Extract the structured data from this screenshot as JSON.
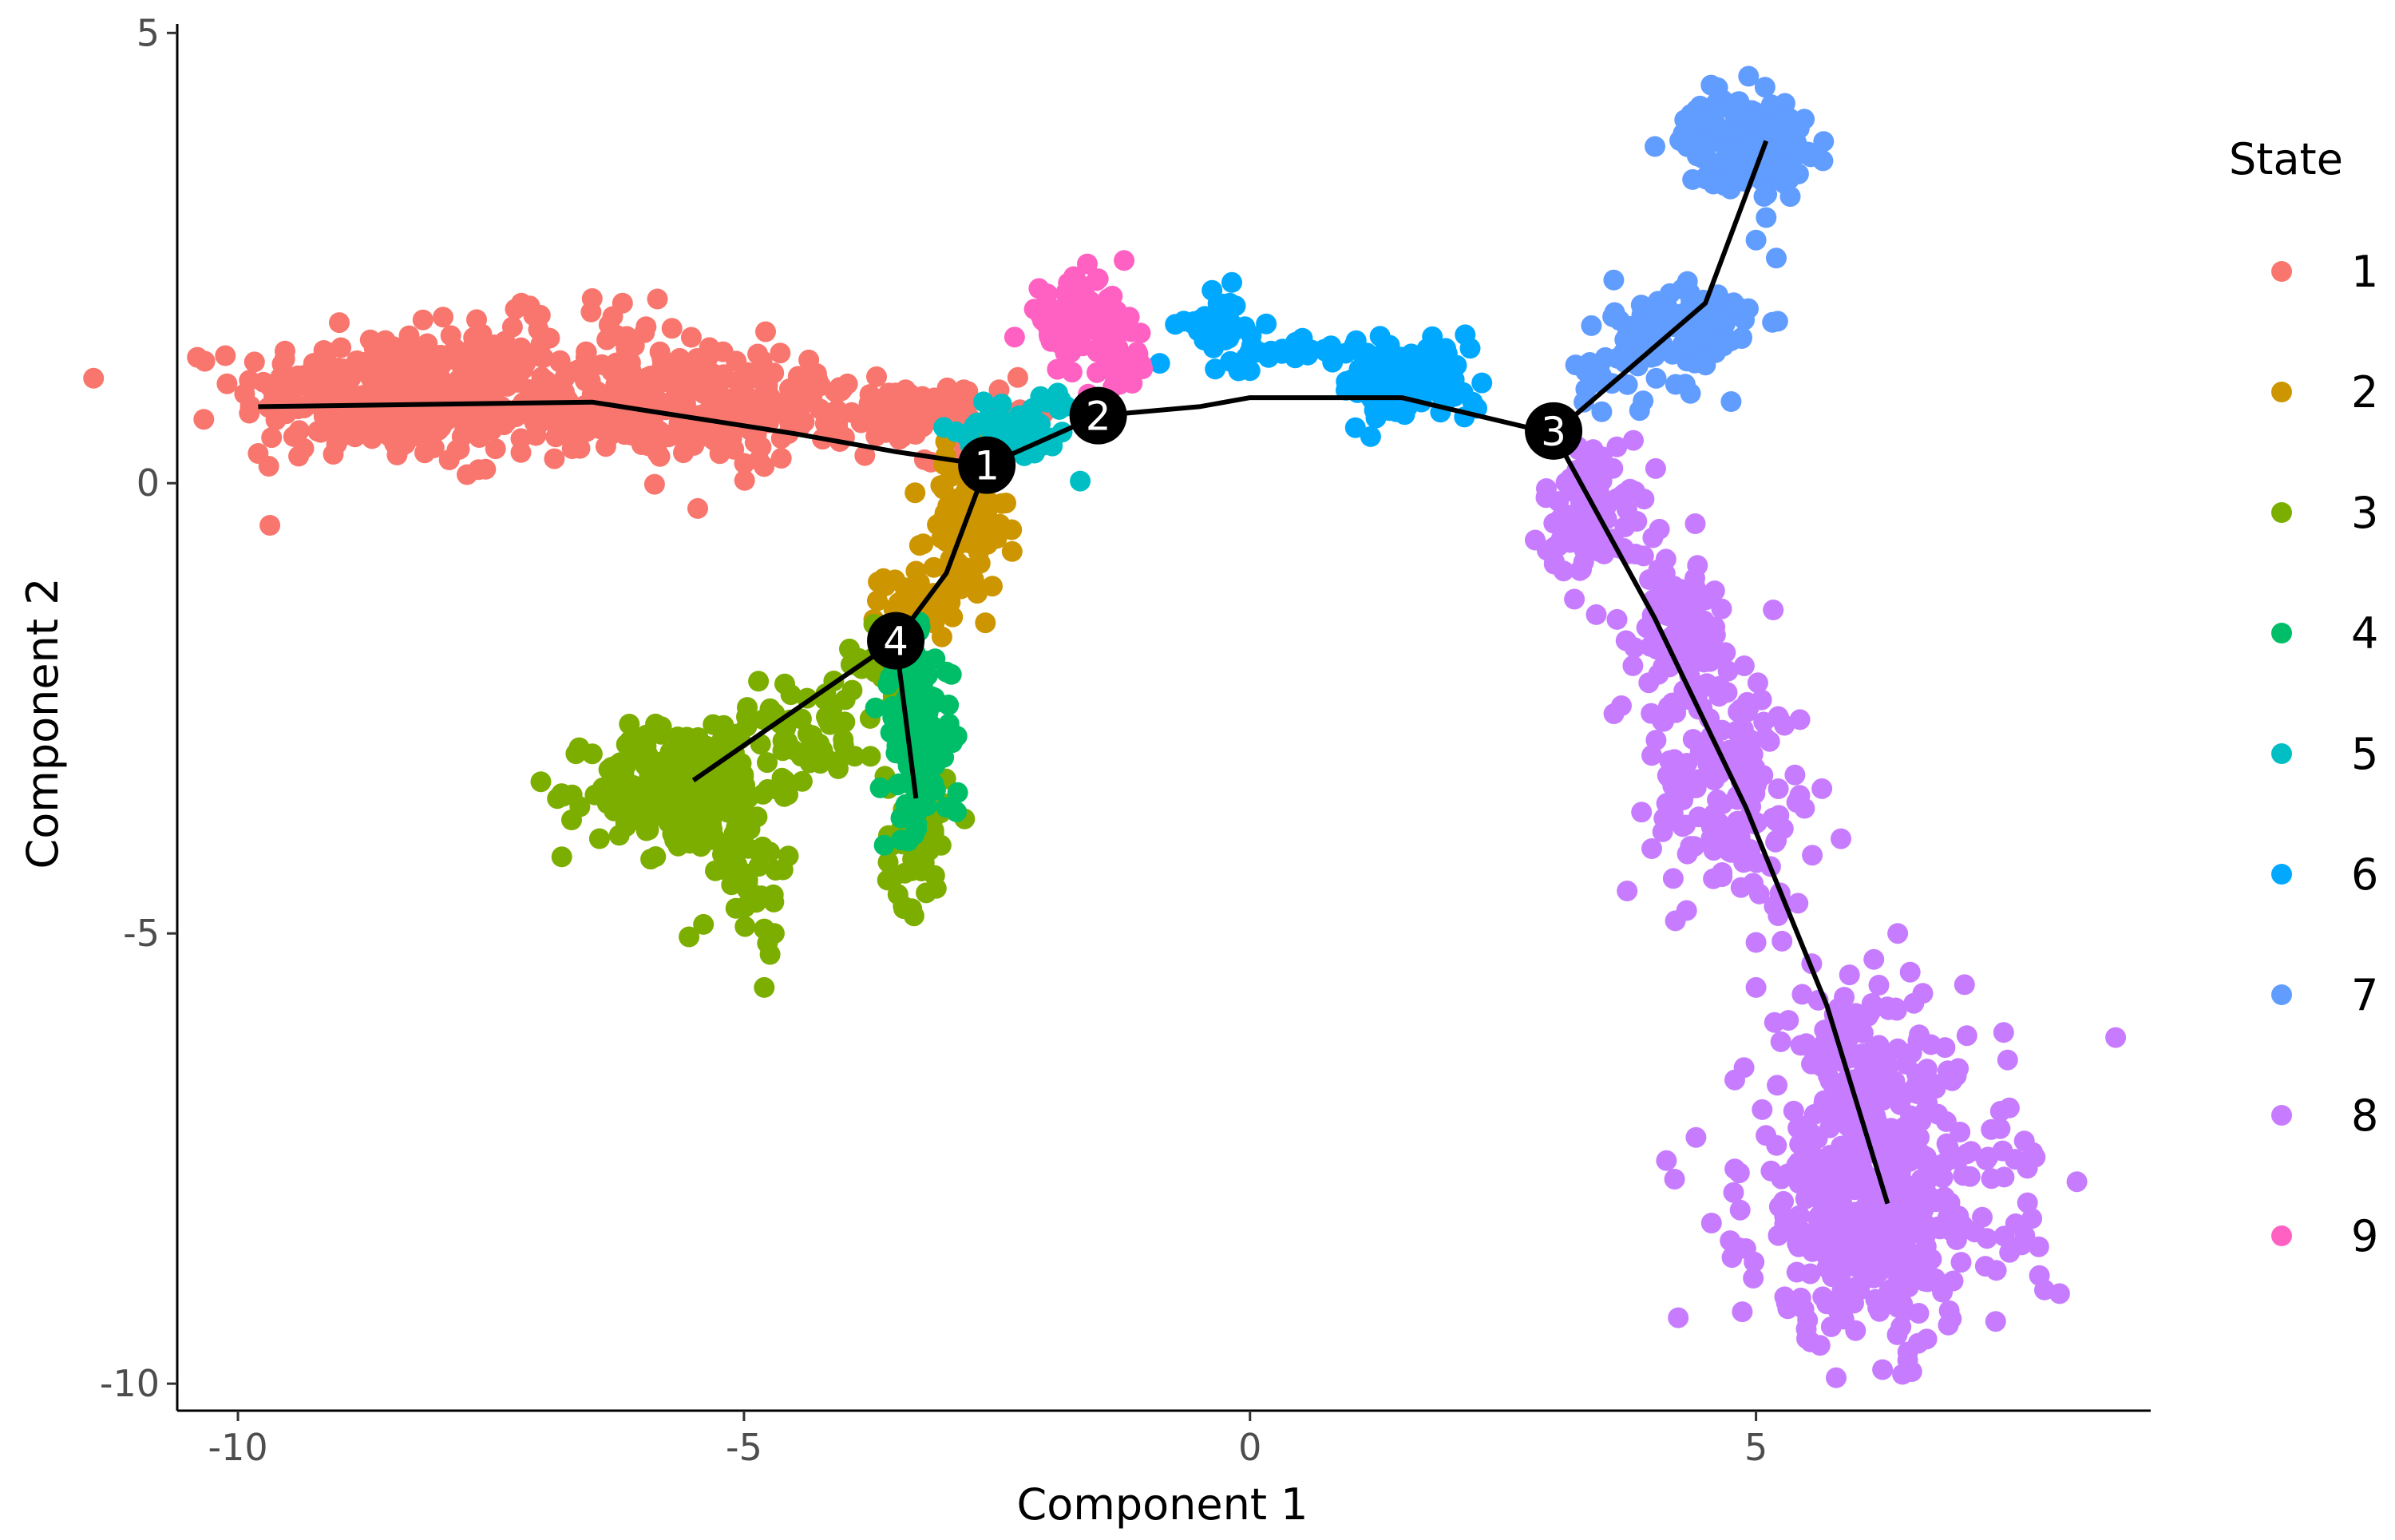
{
  "chart_data": {
    "type": "scatter",
    "xlabel": "Component 1",
    "ylabel": "Component 2",
    "xlim": [
      -10.6,
      8.9
    ],
    "ylim": [
      -10.3,
      5.1
    ],
    "xticks": [
      -10,
      -5,
      0,
      5
    ],
    "yticks": [
      -10,
      -5,
      0,
      5
    ],
    "xtick_labels": [
      "-10",
      "-5",
      "0",
      "5"
    ],
    "ytick_labels": [
      "-10",
      "-5",
      "0",
      "5"
    ],
    "grid": false,
    "legend": {
      "title": "State",
      "position": "right"
    },
    "series": [
      {
        "name": "1",
        "color": "#F8766D",
        "clusters": [
          {
            "x": -8.6,
            "y": 1.0,
            "sx": 0.7,
            "sy": 0.35,
            "n": 260
          },
          {
            "x": -6.8,
            "y": 0.85,
            "sx": 1.0,
            "sy": 0.3,
            "n": 200
          },
          {
            "x": -5.0,
            "y": 0.8,
            "sx": 0.9,
            "sy": 0.28,
            "n": 170
          },
          {
            "x": -3.5,
            "y": 0.8,
            "sx": 0.5,
            "sy": 0.15,
            "n": 60
          },
          {
            "x": -6.6,
            "y": 1.5,
            "sx": 1.0,
            "sy": 0.25,
            "n": 50
          },
          {
            "x": -2.8,
            "y": 0.55,
            "sx": 0.2,
            "sy": 0.15,
            "n": 20
          }
        ],
        "points": [
          [
            -9.8,
            0.33
          ],
          [
            -9.4,
            0.3
          ],
          [
            -7.2,
            2.0
          ],
          [
            -6.5,
            2.05
          ],
          [
            -6.2,
            2.0
          ]
        ]
      },
      {
        "name": "2",
        "color": "#CD9600",
        "clusters": [
          {
            "x": -2.8,
            "y": -0.5,
            "sx": 0.2,
            "sy": 0.4,
            "n": 90
          },
          {
            "x": -3.3,
            "y": -1.3,
            "sx": 0.2,
            "sy": 0.2,
            "n": 35
          }
        ],
        "points": []
      },
      {
        "name": "3",
        "color": "#7CAE00",
        "clusters": [
          {
            "x": -5.6,
            "y": -3.4,
            "sx": 0.45,
            "sy": 0.35,
            "n": 230
          },
          {
            "x": -4.4,
            "y": -2.7,
            "sx": 0.4,
            "sy": 0.3,
            "n": 60
          },
          {
            "x": -3.6,
            "y": -2.0,
            "sx": 0.2,
            "sy": 0.2,
            "n": 30
          },
          {
            "x": -3.3,
            "y": -3.9,
            "sx": 0.15,
            "sy": 0.4,
            "n": 55
          },
          {
            "x": -4.9,
            "y": -4.3,
            "sx": 0.2,
            "sy": 0.35,
            "n": 40
          }
        ],
        "points": [
          [
            -6.8,
            -4.15
          ],
          [
            -5.4,
            -4.9
          ],
          [
            -4.8,
            -4.95
          ],
          [
            -4.7,
            -5.0
          ],
          [
            -4.8,
            -5.6
          ],
          [
            -3.1,
            -4.5
          ],
          [
            -3.2,
            -4.55
          ]
        ]
      },
      {
        "name": "4",
        "color": "#00BE67",
        "clusters": [
          {
            "x": -3.3,
            "y": -2.8,
            "sx": 0.18,
            "sy": 0.5,
            "n": 120
          }
        ],
        "points": [
          [
            -2.9,
            -3.65
          ],
          [
            -3.0,
            -3.6
          ]
        ]
      },
      {
        "name": "5",
        "color": "#00BFC4",
        "clusters": [
          {
            "x": -2.3,
            "y": 0.6,
            "sx": 0.3,
            "sy": 0.2,
            "n": 55
          }
        ],
        "points": [
          [
            -1.9,
            1.0
          ],
          [
            -2.0,
            0.9
          ]
        ]
      },
      {
        "name": "6",
        "color": "#00A9FF",
        "clusters": [
          {
            "x": -0.3,
            "y": 1.7,
            "sx": 0.2,
            "sy": 0.2,
            "n": 40
          },
          {
            "x": 0.6,
            "y": 1.5,
            "sx": 0.4,
            "sy": 0.1,
            "n": 30
          },
          {
            "x": 1.6,
            "y": 1.1,
            "sx": 0.35,
            "sy": 0.22,
            "n": 90
          }
        ],
        "points": [
          [
            -0.2,
            2.0
          ],
          [
            0.0,
            1.25
          ],
          [
            2.2,
            0.9
          ]
        ]
      },
      {
        "name": "7",
        "color": "#619CFF",
        "clusters": [
          {
            "x": 4.9,
            "y": 3.8,
            "sx": 0.3,
            "sy": 0.25,
            "n": 180
          },
          {
            "x": 4.3,
            "y": 1.7,
            "sx": 0.35,
            "sy": 0.3,
            "n": 110
          },
          {
            "x": 3.6,
            "y": 1.2,
            "sx": 0.2,
            "sy": 0.2,
            "n": 20
          }
        ],
        "points": [
          [
            5.1,
            2.95
          ],
          [
            5.2,
            2.5
          ],
          [
            5.0,
            2.7
          ],
          [
            3.3,
            0.9
          ],
          [
            4.3,
            1.1
          ]
        ]
      },
      {
        "name": "8",
        "color": "#C77CFF",
        "clusters": [
          {
            "x": 3.4,
            "y": -0.3,
            "sx": 0.25,
            "sy": 0.4,
            "n": 90
          },
          {
            "x": 4.2,
            "y": -1.7,
            "sx": 0.35,
            "sy": 0.5,
            "n": 100
          },
          {
            "x": 4.8,
            "y": -3.4,
            "sx": 0.4,
            "sy": 0.65,
            "n": 150
          },
          {
            "x": 6.2,
            "y": -7.9,
            "sx": 0.65,
            "sy": 0.8,
            "n": 480
          },
          {
            "x": 5.9,
            "y": -6.2,
            "sx": 0.3,
            "sy": 0.4,
            "n": 60
          }
        ],
        "points": [
          [
            4.4,
            -0.45
          ],
          [
            5.0,
            -5.1
          ],
          [
            5.0,
            -5.6
          ],
          [
            6.4,
            -5.0
          ],
          [
            7.0,
            -6.5
          ],
          [
            7.8,
            -8.8
          ],
          [
            8.0,
            -9.0
          ],
          [
            5.5,
            -9.5
          ],
          [
            6.9,
            -9.35
          ],
          [
            4.9,
            -8.5
          ],
          [
            5.3,
            -9.1
          ]
        ]
      },
      {
        "name": "9",
        "color": "#FF61C3",
        "clusters": [
          {
            "x": -1.7,
            "y": 1.85,
            "sx": 0.25,
            "sy": 0.22,
            "n": 90
          },
          {
            "x": -1.3,
            "y": 1.35,
            "sx": 0.15,
            "sy": 0.2,
            "n": 25
          }
        ],
        "points": []
      }
    ],
    "trajectory": [
      [
        [
          -9.8,
          0.85
        ],
        [
          -6.5,
          0.9
        ],
        [
          -4.5,
          0.55
        ],
        [
          -3.5,
          0.35
        ],
        [
          -2.6,
          0.2
        ],
        [
          -1.5,
          0.75
        ],
        [
          -0.5,
          0.85
        ],
        [
          0.0,
          0.95
        ],
        [
          1.5,
          0.95
        ],
        [
          3.0,
          0.55
        ]
      ],
      [
        [
          -2.6,
          0.2
        ],
        [
          -3.0,
          -1.0
        ],
        [
          -3.5,
          -1.75
        ],
        [
          -4.6,
          -2.6
        ],
        [
          -5.5,
          -3.3
        ]
      ],
      [
        [
          -3.5,
          -1.75
        ],
        [
          -3.3,
          -3.5
        ]
      ],
      [
        [
          3.0,
          0.55
        ],
        [
          4.5,
          2.0
        ],
        [
          5.1,
          3.8
        ]
      ],
      [
        [
          3.0,
          0.55
        ],
        [
          4.0,
          -1.5
        ],
        [
          4.9,
          -3.6
        ],
        [
          5.7,
          -5.8
        ],
        [
          6.3,
          -8.0
        ]
      ]
    ],
    "branch_points": [
      {
        "label": "1",
        "x": -2.6,
        "y": 0.2
      },
      {
        "label": "2",
        "x": -1.5,
        "y": 0.75
      },
      {
        "label": "3",
        "x": 3.0,
        "y": 0.58
      },
      {
        "label": "4",
        "x": -3.5,
        "y": -1.75
      }
    ]
  }
}
